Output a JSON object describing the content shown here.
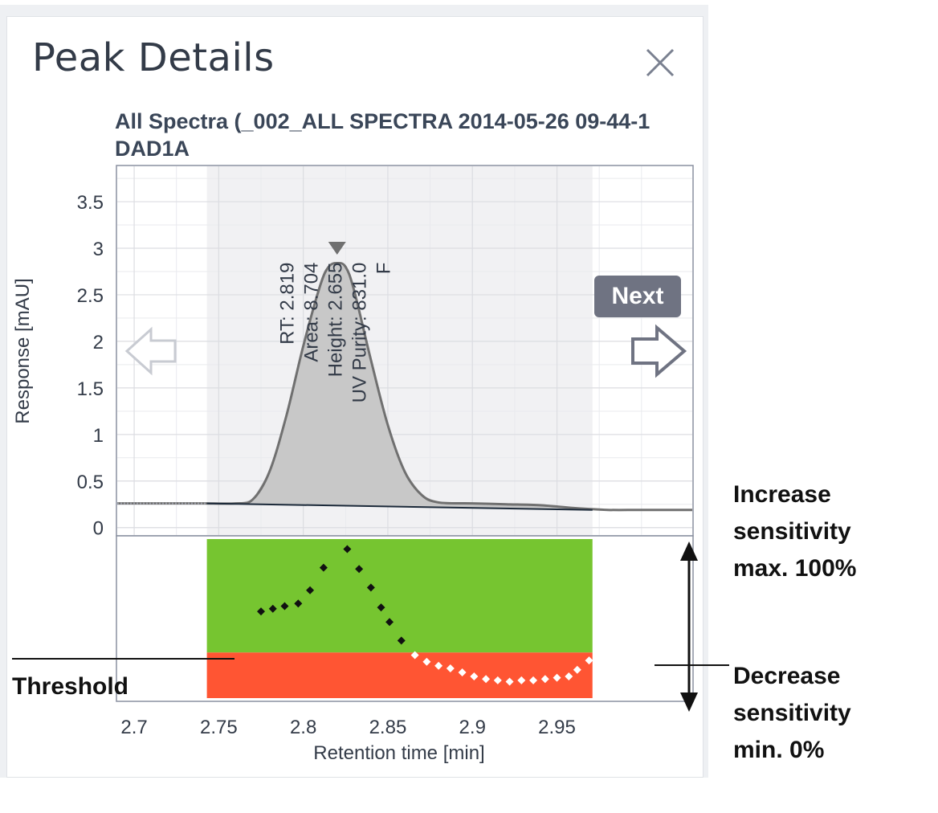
{
  "window": {
    "title": "Peak Details",
    "subtitle_line1": "All Spectra (_002_ALL SPECTRA 2014-05-26 09-44-1",
    "subtitle_line2": "DAD1A",
    "next_label": "Next"
  },
  "annotations": {
    "threshold": "Threshold",
    "increase": [
      "Increase",
      "sensitivity",
      "max. 100%"
    ],
    "decrease": [
      "Decrease",
      "sensitivity",
      "min. 0%"
    ]
  },
  "peak_labels": [
    "RT: 2.819",
    "Area: 8.704",
    "Height: 2.655",
    "UV Purity: 831.0",
    "F"
  ],
  "colors": {
    "purity_ok": "#76c530",
    "purity_fail": "#ff5533",
    "peak_fill": "#c8c8c8",
    "peak_line": "#707070",
    "baseline": "#1c2a3a",
    "integration_band": "#f1f1f3"
  },
  "chart_data": {
    "type": "area",
    "xlabel": "Retention time [min]",
    "ylabel": "Response [mAU]",
    "xlim": [
      2.69,
      3.03
    ],
    "ylim": [
      -0.08,
      3.88
    ],
    "x_ticks": [
      2.7,
      2.75,
      2.8,
      2.85,
      2.9,
      2.95
    ],
    "y_ticks": [
      0,
      0.5,
      1,
      1.5,
      2,
      2.5,
      3,
      3.5
    ],
    "integration_range": [
      2.743,
      2.971
    ],
    "series": [
      {
        "type": "line",
        "x": [
          2.69,
          2.7,
          2.72,
          2.74,
          2.76,
          2.77,
          2.78,
          2.79,
          2.8,
          2.81,
          2.815,
          2.82,
          2.825,
          2.83,
          2.84,
          2.85,
          2.86,
          2.87,
          2.88,
          2.9,
          2.92,
          2.94,
          2.96,
          2.98,
          3.0,
          3.03
        ],
        "y": [
          0.26,
          0.26,
          0.26,
          0.26,
          0.26,
          0.3,
          0.6,
          1.2,
          1.95,
          2.6,
          2.8,
          2.84,
          2.8,
          2.55,
          1.8,
          1.1,
          0.6,
          0.35,
          0.27,
          0.26,
          0.25,
          0.24,
          0.21,
          0.19,
          0.19,
          0.19
        ]
      },
      {
        "type": "baseline",
        "x": [
          2.743,
          2.971
        ],
        "y": [
          0.26,
          0.19
        ]
      }
    ],
    "apex_x": 2.82,
    "purity": {
      "threshold": 0.35,
      "dots": [
        {
          "x": 2.775,
          "y": 0.66
        },
        {
          "x": 2.782,
          "y": 0.68
        },
        {
          "x": 2.789,
          "y": 0.7
        },
        {
          "x": 2.797,
          "y": 0.72
        },
        {
          "x": 2.804,
          "y": 0.82
        },
        {
          "x": 2.812,
          "y": 0.99
        },
        {
          "x": 2.826,
          "y": 1.13
        },
        {
          "x": 2.833,
          "y": 0.98
        },
        {
          "x": 2.84,
          "y": 0.84
        },
        {
          "x": 2.846,
          "y": 0.69
        },
        {
          "x": 2.851,
          "y": 0.58
        },
        {
          "x": 2.858,
          "y": 0.44
        },
        {
          "x": 2.866,
          "y": 0.33
        },
        {
          "x": 2.873,
          "y": 0.28
        },
        {
          "x": 2.88,
          "y": 0.25
        },
        {
          "x": 2.887,
          "y": 0.23
        },
        {
          "x": 2.894,
          "y": 0.2
        },
        {
          "x": 2.901,
          "y": 0.17
        },
        {
          "x": 2.908,
          "y": 0.15
        },
        {
          "x": 2.915,
          "y": 0.14
        },
        {
          "x": 2.922,
          "y": 0.13
        },
        {
          "x": 2.929,
          "y": 0.14
        },
        {
          "x": 2.936,
          "y": 0.14
        },
        {
          "x": 2.943,
          "y": 0.15
        },
        {
          "x": 2.95,
          "y": 0.16
        },
        {
          "x": 2.957,
          "y": 0.17
        },
        {
          "x": 2.962,
          "y": 0.22
        },
        {
          "x": 2.969,
          "y": 0.29
        }
      ]
    }
  }
}
